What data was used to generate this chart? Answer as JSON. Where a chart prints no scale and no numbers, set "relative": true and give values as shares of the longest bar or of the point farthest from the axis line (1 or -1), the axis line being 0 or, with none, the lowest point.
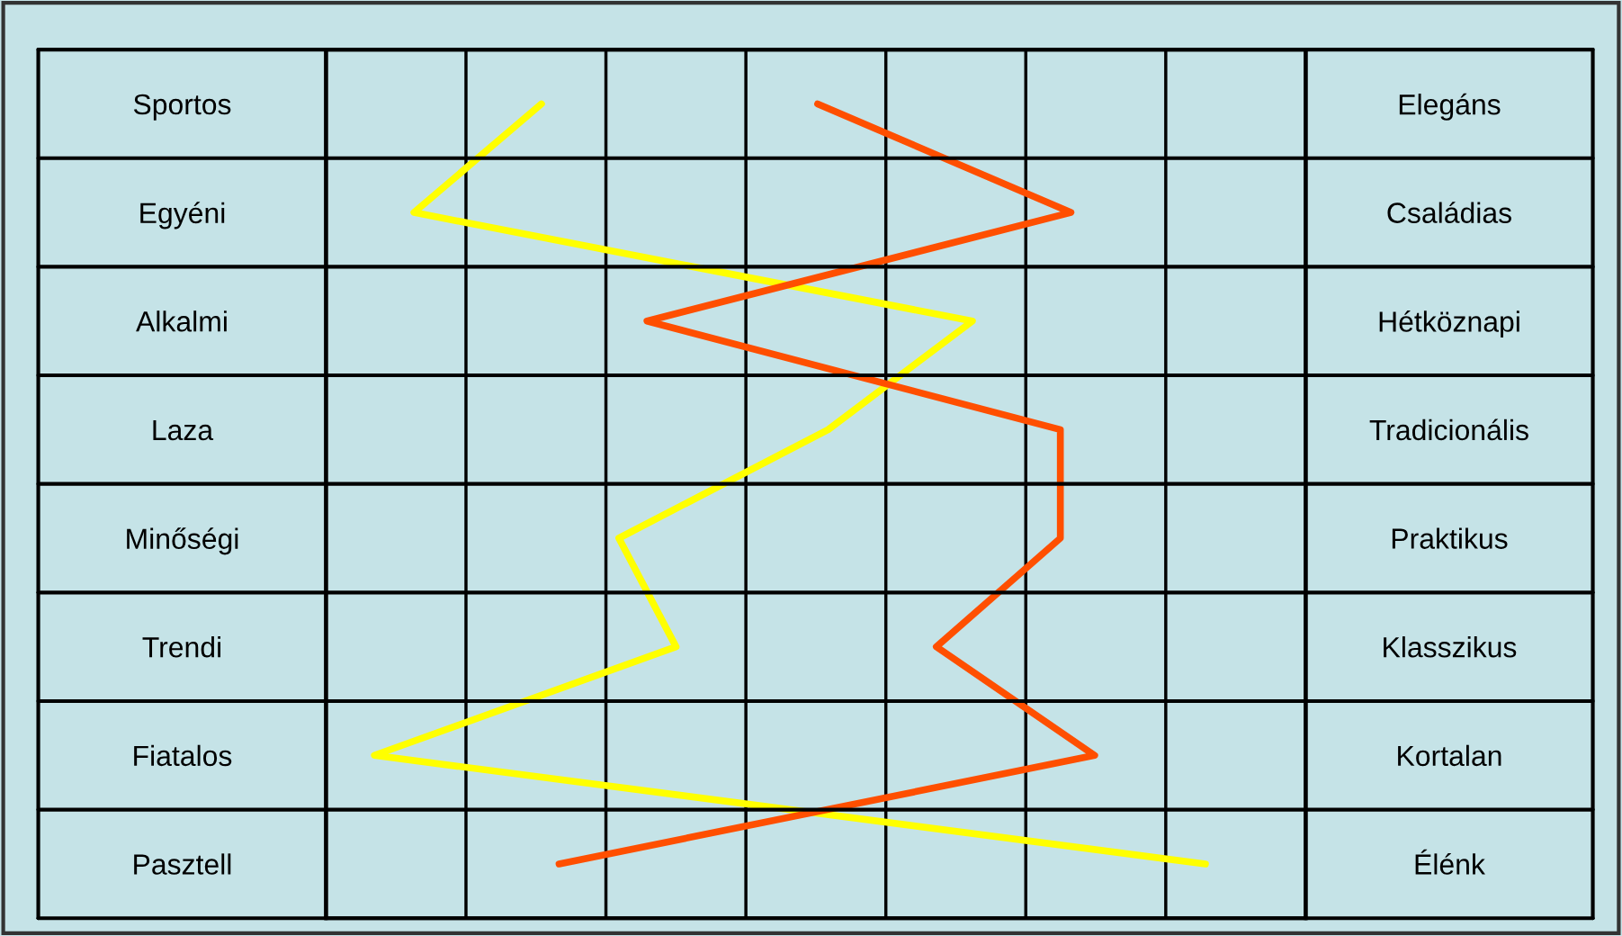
{
  "chart_data": {
    "type": "line",
    "orientation": "horizontal",
    "relative": true,
    "grid": "x",
    "legend": false,
    "categories": [
      "Sportos",
      "Egyéni",
      "Alkalmi",
      "Laza",
      "Minőségi",
      "Trendi",
      "Fiatalos",
      "Pasztell"
    ],
    "y2_categories": [
      "Elegáns",
      "Családias",
      "Hétköznapi",
      "Tradicionális",
      "Praktikus",
      "Klasszikus",
      "Kortalan",
      "Élénk"
    ],
    "series": [
      {
        "color": "#ffff00",
        "values": [
          0.245,
          0.1,
          0.735,
          0.571,
          0.333,
          0.398,
          0.055,
          1.0
        ]
      },
      {
        "color": "#ff4f00",
        "values": [
          0.559,
          0.847,
          0.365,
          0.835,
          0.835,
          0.694,
          0.874,
          0.265
        ]
      }
    ]
  }
}
